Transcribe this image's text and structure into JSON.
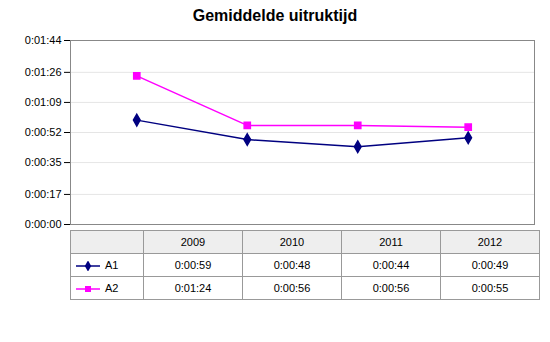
{
  "chart_data": {
    "type": "line",
    "title": "Gemiddelde uitruktijd",
    "x": [
      2009,
      2010,
      2011,
      2012
    ],
    "xlim": [
      2008.4,
      2012.6
    ],
    "ylim": [
      0,
      104
    ],
    "yticks": [
      {
        "value": 0,
        "label": "0:00:00"
      },
      {
        "value": 17,
        "label": "0:00:17"
      },
      {
        "value": 35,
        "label": "0:00:35"
      },
      {
        "value": 52,
        "label": "0:00:52"
      },
      {
        "value": 69,
        "label": "0:01:09"
      },
      {
        "value": 86,
        "label": "0:01:26"
      },
      {
        "value": 104,
        "label": "0:01:44"
      }
    ],
    "grid": true,
    "tick_labels": "y",
    "data_labels": true,
    "legend": "bottom",
    "series": [
      {
        "name": "A1",
        "color": "#000080",
        "marker": "diamond",
        "values": [
          59,
          48,
          44,
          49
        ],
        "value_labels": [
          "0:00:59",
          "0:00:48",
          "0:00:44",
          "0:00:49"
        ]
      },
      {
        "name": "A2",
        "color": "#FF00FF",
        "marker": "square",
        "values": [
          84,
          56,
          56,
          55
        ],
        "value_labels": [
          "0:01:24",
          "0:00:56",
          "0:00:56",
          "0:00:55"
        ]
      }
    ]
  }
}
